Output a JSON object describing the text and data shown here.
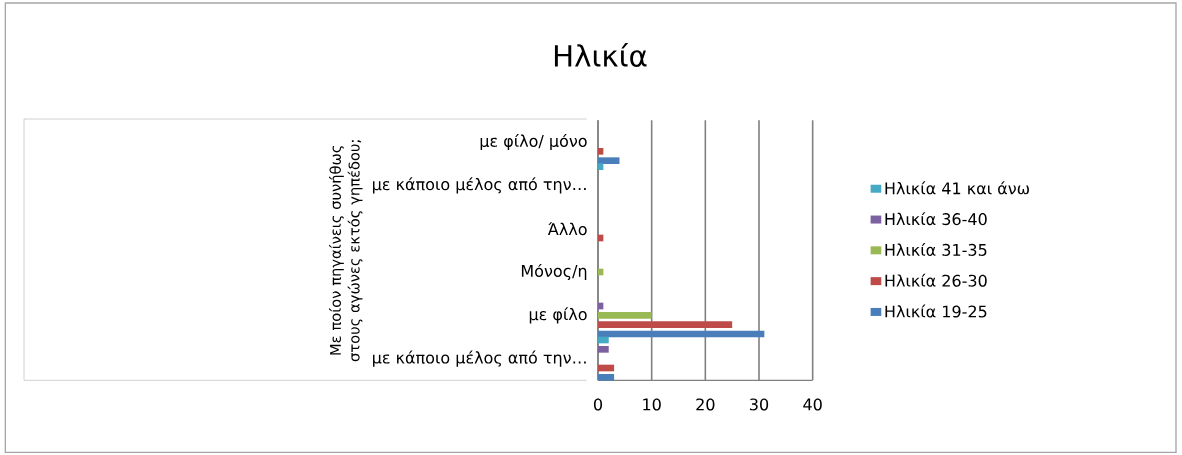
{
  "chart_data": {
    "type": "bar",
    "orientation": "horizontal",
    "title": "Ηλικία",
    "ylabel": "Με ποίον πηγαίνεις συνήθως στους αγώνες εκτός γηπέδου;",
    "categories": [
      "με φίλο/ μόνο",
      "με κάποιο μέλος από την…",
      "Άλλο",
      "Μόνος/η",
      "με φίλο",
      "με κάποιο μέλος από την…"
    ],
    "series": [
      {
        "name": "Ηλικία 19-25",
        "color": "#4a7ebb",
        "values": [
          4,
          0,
          0,
          0,
          31,
          3
        ]
      },
      {
        "name": "Ηλικία 26-30",
        "color": "#be4b48",
        "values": [
          1,
          0,
          1,
          0,
          25,
          3
        ]
      },
      {
        "name": "Ηλικία 31-35",
        "color": "#98b954",
        "values": [
          0,
          0,
          0,
          1,
          10,
          0
        ]
      },
      {
        "name": "Ηλικία 36-40",
        "color": "#7d60a0",
        "values": [
          0,
          0,
          0,
          0,
          1,
          2
        ]
      },
      {
        "name": "Ηλικία 41 και άνω",
        "color": "#46aac5",
        "values": [
          0,
          1,
          0,
          0,
          0,
          2
        ]
      }
    ],
    "xlim": [
      0,
      40
    ],
    "xticks": [
      0,
      10,
      20,
      30,
      40
    ],
    "grid": "x",
    "legend": "right"
  }
}
